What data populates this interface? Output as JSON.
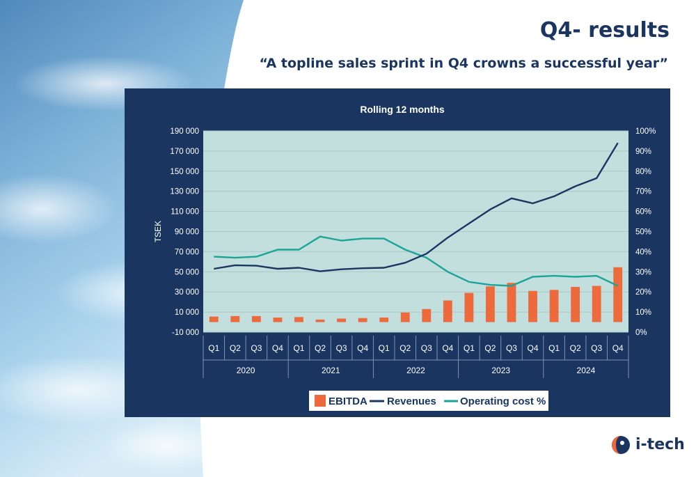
{
  "slide": {
    "title": "Q4- results",
    "subtitle": "“A topline sales sprint in Q4 crowns a successful year”",
    "logo_text": "i-tech"
  },
  "colors": {
    "panel": "#1b3561",
    "plot_bg": "#c2dedd",
    "ebitda": "#ec6a3c",
    "revenues": "#1b3561",
    "operating_cost": "#1aa596",
    "title": "#1b3561"
  },
  "chart_data": {
    "type": "bar",
    "title": "Rolling 12 months",
    "ylabel": "TSEK",
    "ylim": [
      -10000,
      190000
    ],
    "y2lim": [
      0,
      100
    ],
    "yticks": [
      "190 000",
      "170 000",
      "150 000",
      "130 000",
      "110 000",
      "90 000",
      "70 000",
      "50 000",
      "30 000",
      "10 000",
      "-10 000"
    ],
    "y2ticks": [
      "100%",
      "90%",
      "80%",
      "70%",
      "60%",
      "50%",
      "40%",
      "30%",
      "20%",
      "10%",
      "0%"
    ],
    "grid": true,
    "legend_position": "bottom",
    "categories": [
      "Q1",
      "Q2",
      "Q3",
      "Q4",
      "Q1",
      "Q2",
      "Q3",
      "Q4",
      "Q1",
      "Q2",
      "Q3",
      "Q4",
      "Q1",
      "Q2",
      "Q3",
      "Q4",
      "Q1",
      "Q2",
      "Q3",
      "Q4"
    ],
    "year_groups": [
      "2020",
      "2021",
      "2022",
      "2023",
      "2024"
    ],
    "series": [
      {
        "name": "EBITDA",
        "type": "bar",
        "axis": "left",
        "values": [
          5500,
          6000,
          6000,
          4500,
          5000,
          2500,
          3500,
          4000,
          4500,
          9500,
          13000,
          21500,
          29000,
          35500,
          39000,
          31000,
          32000,
          35000,
          36000,
          54500
        ]
      },
      {
        "name": "Revenues",
        "type": "line",
        "axis": "left",
        "values": [
          53000,
          56500,
          56000,
          53000,
          54000,
          50500,
          52500,
          53500,
          54000,
          59000,
          68000,
          84000,
          98000,
          112000,
          123000,
          118000,
          125000,
          135000,
          143000,
          178000
        ]
      },
      {
        "name": "Operating cost %",
        "type": "line",
        "axis": "right",
        "values": [
          37.5,
          37,
          37.5,
          41,
          41,
          47.5,
          45.5,
          46.5,
          46.5,
          41,
          37,
          30,
          25,
          23.5,
          23,
          27.5,
          28,
          27.5,
          28,
          23
        ]
      }
    ]
  }
}
